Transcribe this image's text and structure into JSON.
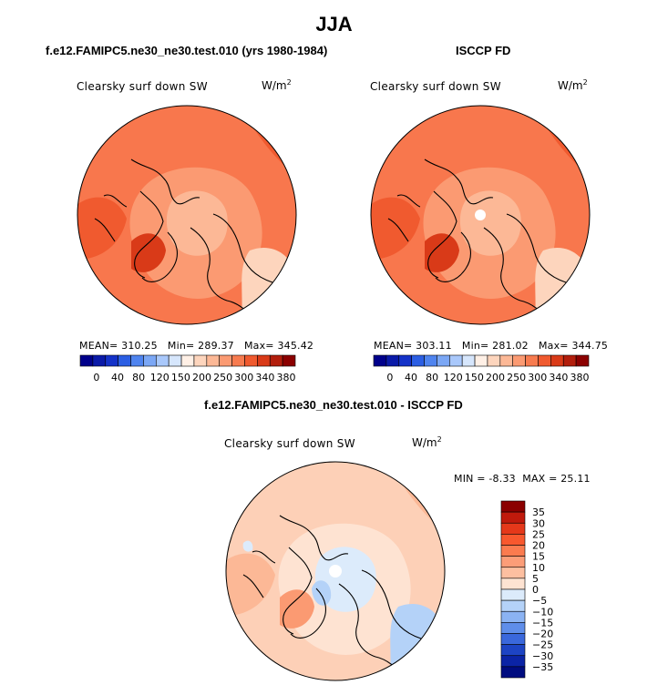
{
  "title": "JJA",
  "chart_data": [
    {
      "type": "heatmap",
      "projection": "north polar stereographic",
      "title": "f.e12.FAMIPC5.ne30_ne30.test.010 (yrs 1980-1984)",
      "variable": "Clearsky surf down SW",
      "units": "W/m",
      "units_exp": "2",
      "stats": {
        "mean_label": "MEAN=",
        "mean": "310.25",
        "min_label": "Min=",
        "min": "289.37",
        "max_label": "Max=",
        "max": "345.42"
      },
      "colorbar": {
        "orientation": "horizontal",
        "levels": [
          "0",
          "40",
          "80",
          "120",
          "150",
          "200",
          "250",
          "300",
          "340",
          "380"
        ],
        "colors": [
          "#00008b",
          "#0a1aa8",
          "#1432c8",
          "#2b5ee3",
          "#4f84ef",
          "#7ba7f5",
          "#a9c8fb",
          "#d6e6fc",
          "#fff0e6",
          "#fdd5bd",
          "#fcb896",
          "#fb9a72",
          "#f77b4f",
          "#f05a2f",
          "#d93a18",
          "#b21e0c",
          "#8b0000"
        ]
      }
    },
    {
      "type": "heatmap",
      "projection": "north polar stereographic",
      "title": "ISCCP FD",
      "variable": "Clearsky surf down SW",
      "units": "W/m",
      "units_exp": "2",
      "stats": {
        "mean_label": "MEAN=",
        "mean": "303.11",
        "min_label": "Min=",
        "min": "281.02",
        "max_label": "Max=",
        "max": "344.75"
      },
      "colorbar": {
        "orientation": "horizontal",
        "levels": [
          "0",
          "40",
          "80",
          "120",
          "150",
          "200",
          "250",
          "300",
          "340",
          "380"
        ],
        "colors": [
          "#00008b",
          "#0a1aa8",
          "#1432c8",
          "#2b5ee3",
          "#4f84ef",
          "#7ba7f5",
          "#a9c8fb",
          "#d6e6fc",
          "#fff0e6",
          "#fdd5bd",
          "#fcb896",
          "#fb9a72",
          "#f77b4f",
          "#f05a2f",
          "#d93a18",
          "#b21e0c",
          "#8b0000"
        ]
      }
    },
    {
      "type": "heatmap",
      "projection": "north polar stereographic",
      "title": "f.e12.FAMIPC5.ne30_ne30.test.010 - ISCCP FD",
      "variable": "Clearsky surf down SW",
      "units": "W/m",
      "units_exp": "2",
      "stats": {
        "min_label": "MIN =",
        "min": "-8.33",
        "max_label": "MAX =",
        "max": "25.11"
      },
      "colorbar": {
        "orientation": "vertical",
        "levels": [
          "35",
          "30",
          "25",
          "20",
          "15",
          "10",
          "5",
          "0",
          "−5",
          "−10",
          "−15",
          "−20",
          "−25",
          "−30",
          "−35"
        ],
        "colors": [
          "#8b0000",
          "#c01a0c",
          "#e5381a",
          "#f8582e",
          "#fb7b4f",
          "#fc9d78",
          "#fdbfa0",
          "#fee3d2",
          "#dcebfb",
          "#b4d2f8",
          "#8bb3f3",
          "#5f8eea",
          "#3a68dc",
          "#1d44c4",
          "#0b24a6",
          "#000c80"
        ]
      }
    }
  ]
}
